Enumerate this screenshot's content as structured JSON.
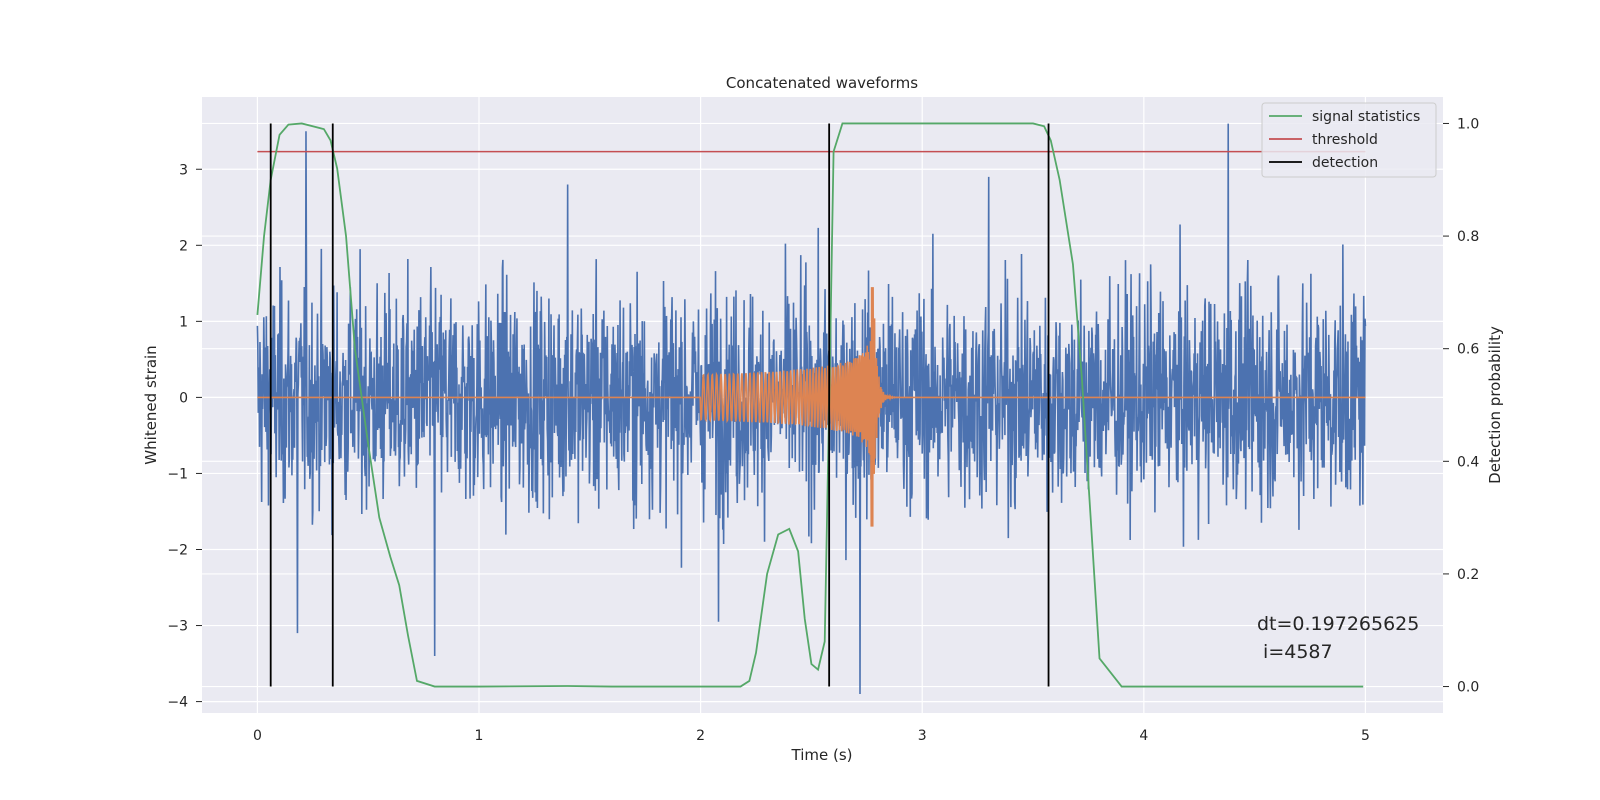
{
  "chart_data": {
    "type": "line",
    "title": "Concatenated waveforms",
    "xlabel": "Time (s)",
    "ylabel": "Whitened strain",
    "y2label": "Detection probability",
    "xlim": [
      -0.25,
      5.35
    ],
    "ylim": [
      -4.15,
      3.95
    ],
    "y2lim": [
      -0.047,
      1.047
    ],
    "x_ticks": [
      0,
      1,
      2,
      3,
      4,
      5
    ],
    "y_ticks": [
      -4,
      -3,
      -2,
      -1,
      0,
      1,
      2,
      3
    ],
    "y2_ticks": [
      0.0,
      0.2,
      0.4,
      0.6,
      0.8,
      1.0
    ],
    "grid": true,
    "legend_position": "upper-right",
    "legend": [
      "signal statistics",
      "threshold",
      "detection"
    ],
    "annotation_lines": [
      "dt=0.197265625",
      " i=4587"
    ],
    "colors": {
      "strain": "#4c72b0",
      "injection": "#dd8452",
      "signal_statistics": "#55a868",
      "threshold": "#c44e52",
      "detection": "#000000",
      "background": "#eaeaf2",
      "grid": "#ffffff"
    },
    "strain_series": {
      "name": "",
      "x_range": [
        0,
        5
      ],
      "typical_amplitude": 1.0,
      "peak_values": [
        {
          "x": 0.22,
          "y": 3.5
        },
        {
          "x": 4.38,
          "y": 3.6
        },
        {
          "x": 2.72,
          "y": -3.9
        },
        {
          "x": 0.8,
          "y": -3.4
        },
        {
          "x": 0.18,
          "y": -3.1
        },
        {
          "x": 2.08,
          "y": -2.95
        },
        {
          "x": 3.3,
          "y": 2.9
        },
        {
          "x": 1.4,
          "y": 2.8
        }
      ]
    },
    "injection_series": {
      "name": "",
      "x_range": [
        2.0,
        3.0
      ],
      "merger_x": 2.78,
      "max_y": 1.45,
      "min_y": -1.7,
      "early_amplitude": 0.3
    },
    "signal_statistics": {
      "name": "signal statistics",
      "x": [
        0.0,
        0.03,
        0.06,
        0.1,
        0.14,
        0.2,
        0.3,
        0.33,
        0.36,
        0.4,
        0.44,
        0.5,
        0.55,
        0.6,
        0.64,
        0.68,
        0.72,
        0.8,
        1.0,
        1.4,
        1.6,
        2.0,
        2.18,
        2.22,
        2.25,
        2.3,
        2.35,
        2.4,
        2.44,
        2.47,
        2.5,
        2.53,
        2.56,
        2.58,
        2.6,
        2.64,
        2.7,
        3.0,
        3.5,
        3.55,
        3.58,
        3.62,
        3.68,
        3.72,
        3.76,
        3.8,
        3.9,
        4.5,
        4.99
      ],
      "y": [
        0.66,
        0.8,
        0.9,
        0.98,
        0.998,
        1.0,
        0.99,
        0.97,
        0.92,
        0.8,
        0.6,
        0.43,
        0.3,
        0.23,
        0.18,
        0.09,
        0.01,
        0.0,
        0.0,
        0.001,
        0.0,
        0.0,
        0.0,
        0.01,
        0.06,
        0.2,
        0.27,
        0.28,
        0.24,
        0.12,
        0.04,
        0.03,
        0.08,
        0.5,
        0.95,
        1.0,
        1.0,
        1.0,
        1.0,
        0.995,
        0.97,
        0.9,
        0.75,
        0.55,
        0.3,
        0.05,
        0.0,
        0.0,
        0.0
      ]
    },
    "threshold": {
      "name": "threshold",
      "value": 0.95,
      "x_range": [
        0,
        5
      ]
    },
    "detections": {
      "name": "detection",
      "x": [
        0.06,
        0.34,
        2.58,
        3.57
      ],
      "y_range": [
        0.0,
        1.0
      ]
    }
  }
}
